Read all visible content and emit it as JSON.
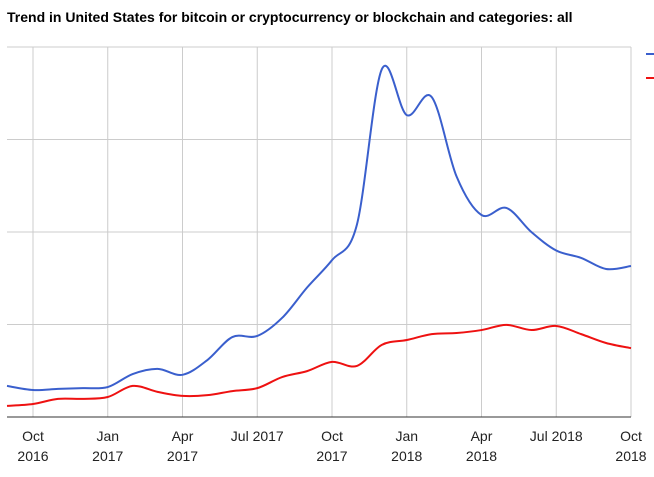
{
  "chart_data": {
    "type": "line",
    "title": "Trend in United States for bitcoin or cryptocurrency or blockchain and categories: all",
    "x": [
      "2016-09",
      "2016-10",
      "2016-11",
      "2016-12",
      "2017-01",
      "2017-02",
      "2017-03",
      "2017-04",
      "2017-05",
      "2017-06",
      "2017-07",
      "2017-08",
      "2017-09",
      "2017-10",
      "2017-11",
      "2017-12",
      "2018-01",
      "2018-02",
      "2018-03",
      "2018-04",
      "2018-05",
      "2018-06",
      "2018-07",
      "2018-08",
      "2018-09",
      "2018-10"
    ],
    "series": [
      {
        "color": "#3a5fcd",
        "values": [
          8.4,
          7.3,
          7.6,
          7.8,
          8.1,
          11.6,
          13,
          11.4,
          15.4,
          21.6,
          21.9,
          26.8,
          35,
          42.4,
          52,
          94,
          81.6,
          86.5,
          65,
          54.6,
          56.5,
          50,
          45,
          43,
          40,
          40.8
        ]
      },
      {
        "color": "#ee1111",
        "values": [
          3,
          3.5,
          4.9,
          4.9,
          5.4,
          8.4,
          6.8,
          5.7,
          5.9,
          7,
          7.8,
          10.8,
          12.4,
          14.9,
          13.8,
          19.5,
          20.8,
          22.4,
          22.7,
          23.5,
          24.9,
          23.5,
          24.6,
          22.4,
          20,
          18.6
        ]
      }
    ],
    "ylim": [
      0,
      100
    ],
    "xticks": [
      {
        "month": "2016-10",
        "line1": "Oct",
        "line2": "2016"
      },
      {
        "month": "2017-01",
        "line1": "Jan",
        "line2": "2017"
      },
      {
        "month": "2017-04",
        "line1": "Apr",
        "line2": "2017"
      },
      {
        "month": "2017-07",
        "line1": "Jul 2017",
        "line2": ""
      },
      {
        "month": "2017-10",
        "line1": "Oct",
        "line2": "2017"
      },
      {
        "month": "2018-01",
        "line1": "Jan",
        "line2": "2018"
      },
      {
        "month": "2018-04",
        "line1": "Apr",
        "line2": "2018"
      },
      {
        "month": "2018-07",
        "line1": "Jul 2018",
        "line2": ""
      },
      {
        "month": "2018-10",
        "line1": "Oct",
        "line2": "2018"
      }
    ],
    "grid": true,
    "legend": "top-right",
    "xlabel": "",
    "ylabel": ""
  }
}
